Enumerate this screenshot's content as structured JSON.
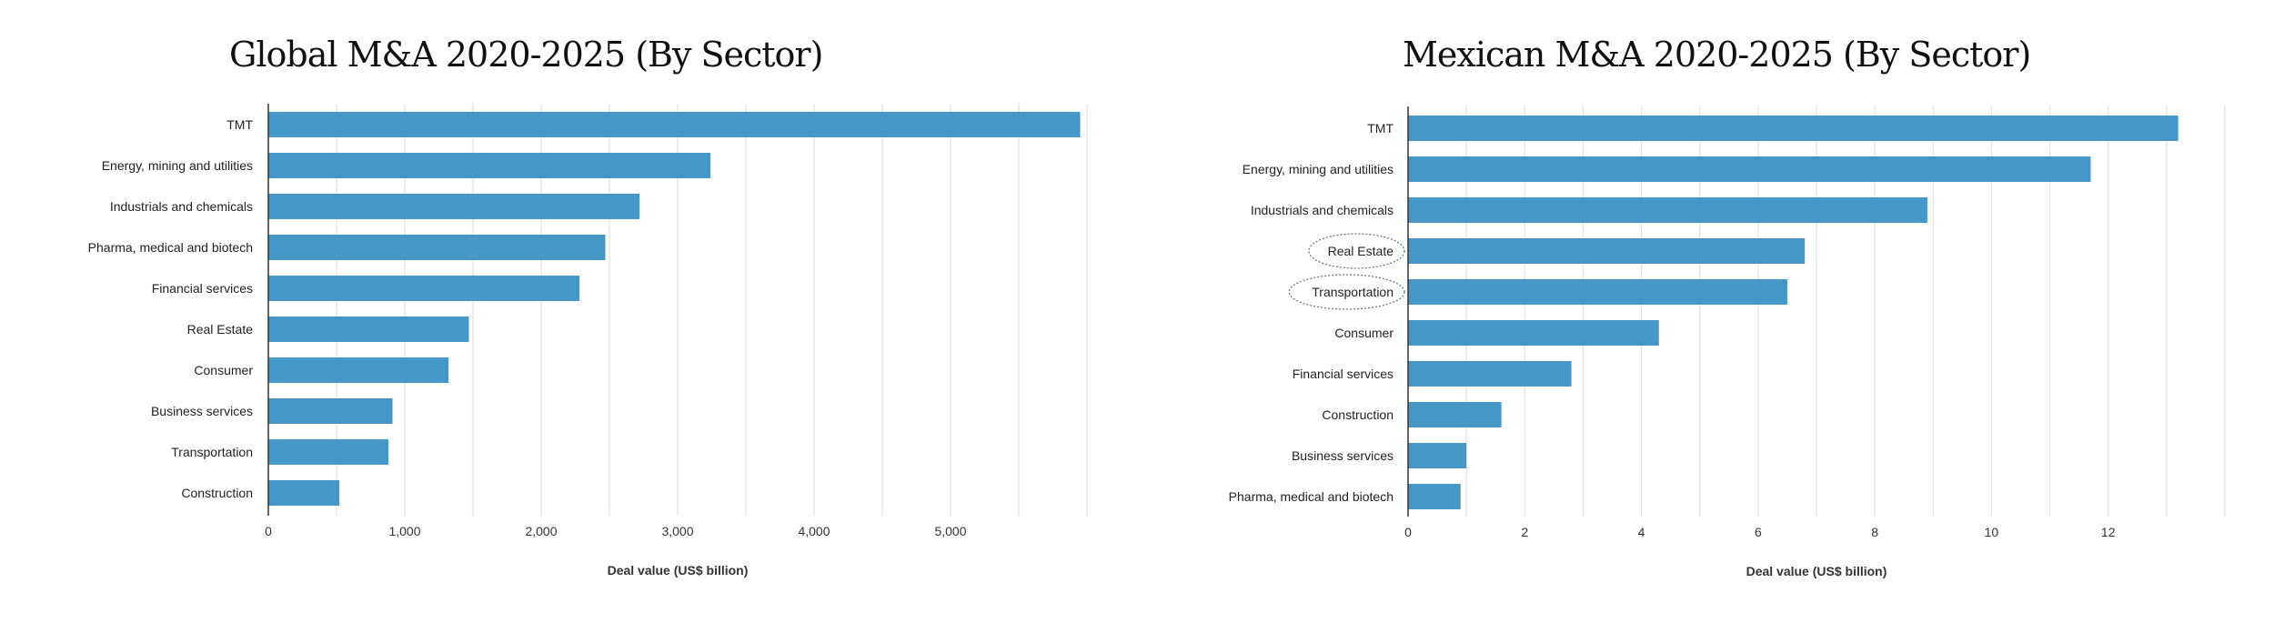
{
  "chart_data": [
    {
      "type": "bar",
      "orientation": "horizontal",
      "title": "Global M&A 2020-2025 (By Sector)",
      "xlabel": "Deal value (US$ billion)",
      "ylabel": "",
      "categories": [
        "TMT",
        "Energy, mining and utilities",
        "Industrials and chemicals",
        "Pharma, medical and biotech",
        "Financial services",
        "Real Estate",
        "Consumer",
        "Business services",
        "Transportation",
        "Construction"
      ],
      "values": [
        5950,
        3240,
        2720,
        2470,
        2280,
        1470,
        1320,
        910,
        880,
        520
      ],
      "xlim": [
        0,
        6000
      ],
      "ticks": [
        0,
        1000,
        2000,
        3000,
        4000,
        5000
      ],
      "tick_labels": [
        "0",
        "1,000",
        "2,000",
        "3,000",
        "4,000",
        "5,000"
      ],
      "grid_step": 500,
      "grid": true,
      "highlighted": [],
      "color": "#4597c8"
    },
    {
      "type": "bar",
      "orientation": "horizontal",
      "title": "Mexican M&A 2020-2025 (By Sector)",
      "xlabel": "Deal value (US$ billion)",
      "ylabel": "",
      "categories": [
        "TMT",
        "Energy, mining and utilities",
        "Industrials and chemicals",
        "Real Estate",
        "Transportation",
        "Consumer",
        "Financial services",
        "Construction",
        "Business services",
        "Pharma, medical and biotech"
      ],
      "values": [
        13.2,
        11.7,
        8.9,
        6.8,
        6.5,
        4.3,
        2.8,
        1.6,
        1.0,
        0.9
      ],
      "xlim": [
        0,
        14
      ],
      "ticks": [
        0,
        2,
        4,
        6,
        8,
        10,
        12
      ],
      "tick_labels": [
        "0",
        "2",
        "4",
        "6",
        "8",
        "10",
        "12"
      ],
      "grid_step": 1,
      "grid": true,
      "highlighted": [
        "Real Estate",
        "Transportation"
      ],
      "color": "#4597c8"
    }
  ]
}
